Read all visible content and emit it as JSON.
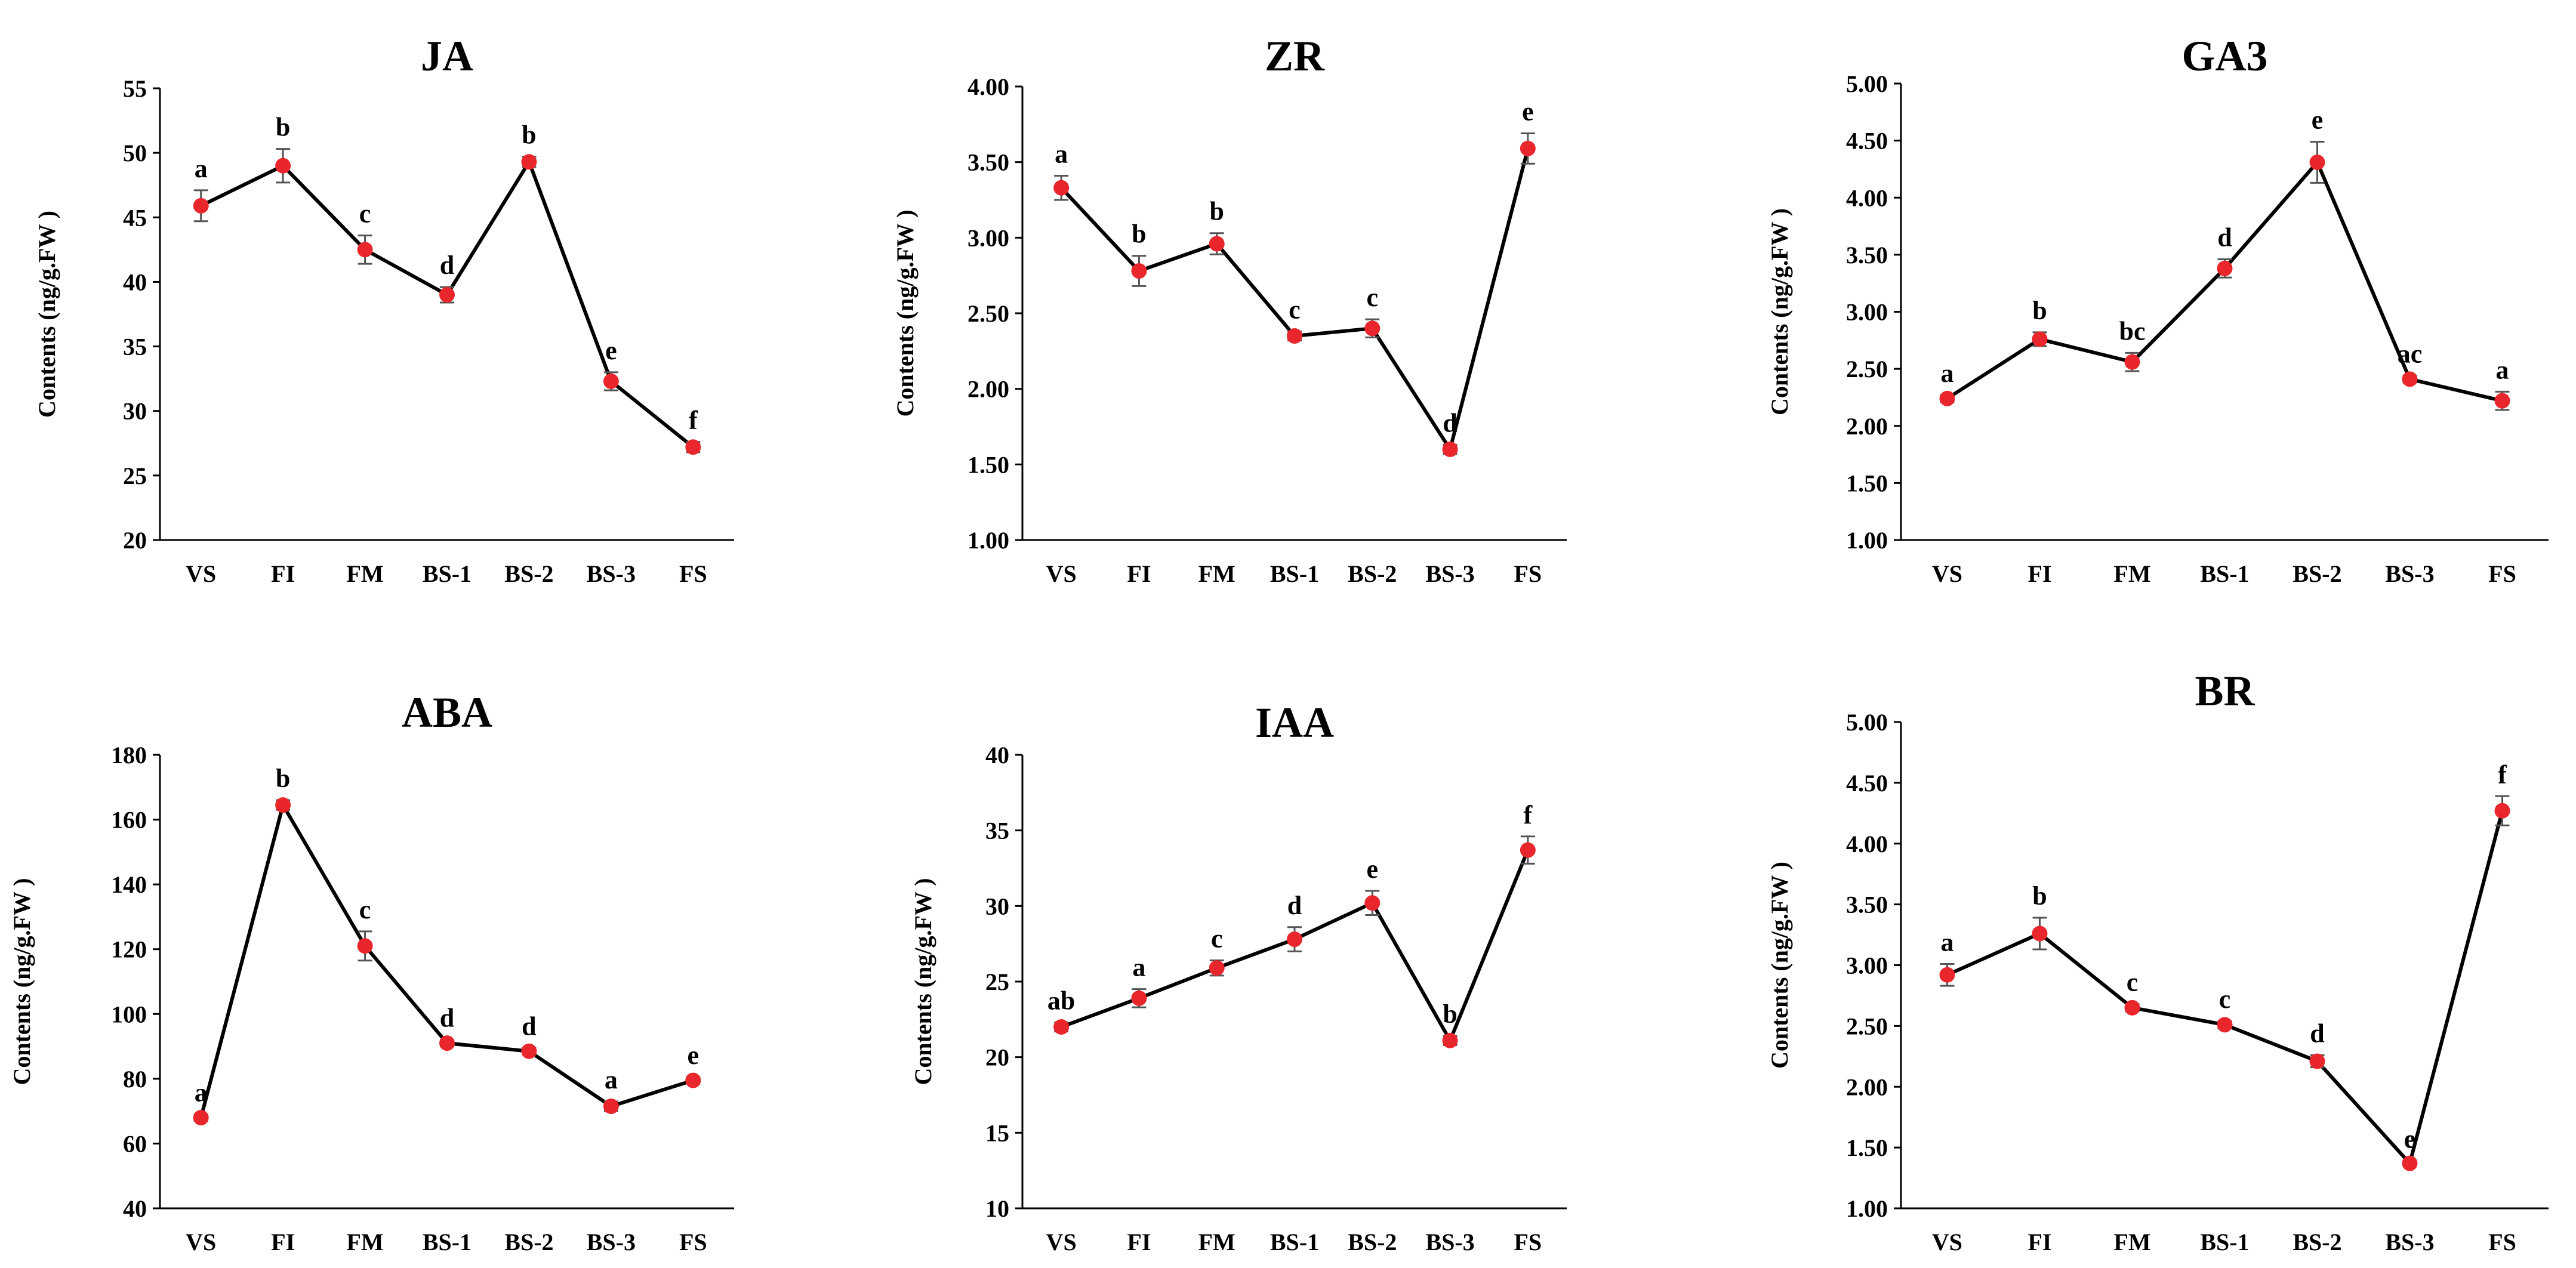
{
  "chart_data": [
    {
      "type": "line",
      "title": "JA",
      "ylabel": "Contents (ng/g.FW )",
      "xlabel": "",
      "categories": [
        "VS",
        "FI",
        "FM",
        "BS-1",
        "BS-2",
        "BS-3",
        "FS"
      ],
      "values": [
        45.9,
        49.0,
        42.5,
        39.0,
        49.3,
        32.3,
        27.2
      ],
      "errors": [
        1.2,
        1.3,
        1.1,
        0.6,
        0.4,
        0.7,
        0.4
      ],
      "labels": [
        "a",
        "b",
        "c",
        "d",
        "b",
        "e",
        "f"
      ],
      "ylim": [
        20,
        55
      ],
      "yticks": [
        20,
        25,
        30,
        35,
        40,
        45,
        50,
        55
      ],
      "ytick_labels": [
        "20",
        "25",
        "30",
        "35",
        "40",
        "45",
        "50",
        "55"
      ],
      "grid": false,
      "color": "#e8262b"
    },
    {
      "type": "line",
      "title": "ZR",
      "ylabel": "Contents (ng/g.FW )",
      "xlabel": "",
      "categories": [
        "VS",
        "FI",
        "FM",
        "BS-1",
        "BS-2",
        "BS-3",
        "FS"
      ],
      "values": [
        3.33,
        2.78,
        2.96,
        2.35,
        2.4,
        1.6,
        3.59
      ],
      "errors": [
        0.08,
        0.1,
        0.07,
        0.03,
        0.06,
        0.03,
        0.1
      ],
      "labels": [
        "a",
        "b",
        "b",
        "c",
        "c",
        "d",
        "e"
      ],
      "ylim": [
        1.0,
        4.0
      ],
      "yticks": [
        1.0,
        1.5,
        2.0,
        2.5,
        3.0,
        3.5,
        4.0
      ],
      "ytick_labels": [
        "1.00",
        "1.50",
        "2.00",
        "2.50",
        "3.00",
        "3.50",
        "4.00"
      ],
      "grid": false,
      "color": "#e8262b"
    },
    {
      "type": "line",
      "title": "GA3",
      "ylabel": "Contents (ng/g.FW )",
      "xlabel": "",
      "categories": [
        "VS",
        "FI",
        "FM",
        "BS-1",
        "BS-2",
        "BS-3",
        "FS"
      ],
      "values": [
        2.24,
        2.76,
        2.56,
        3.38,
        4.31,
        2.41,
        2.22
      ],
      "errors": [
        0.03,
        0.06,
        0.08,
        0.08,
        0.18,
        0.03,
        0.08
      ],
      "labels": [
        "a",
        "b",
        "bc",
        "d",
        "e",
        "ac",
        "a"
      ],
      "ylim": [
        1.0,
        5.0
      ],
      "yticks": [
        1.0,
        1.5,
        2.0,
        2.5,
        3.0,
        3.5,
        4.0,
        4.5,
        5.0
      ],
      "ytick_labels": [
        "1.00",
        "1.50",
        "2.00",
        "2.50",
        "3.00",
        "3.50",
        "4.00",
        "4.50",
        "5.00"
      ],
      "grid": false,
      "color": "#e8262b"
    },
    {
      "type": "line",
      "title": "ABA",
      "ylabel": "Contents (ng/g.FW )",
      "xlabel": "",
      "categories": [
        "VS",
        "FI",
        "FM",
        "BS-1",
        "BS-2",
        "BS-3",
        "FS"
      ],
      "values": [
        68,
        164.5,
        121,
        91,
        88.5,
        71.5,
        79.5
      ],
      "errors": [
        1.0,
        1.5,
        4.5,
        1.0,
        1.0,
        1.5,
        1.0
      ],
      "labels": [
        "a",
        "b",
        "c",
        "d",
        "d",
        "a",
        "e"
      ],
      "ylim": [
        40,
        180
      ],
      "yticks": [
        40,
        60,
        80,
        100,
        120,
        140,
        160,
        180
      ],
      "ytick_labels": [
        "40",
        "60",
        "80",
        "100",
        "120",
        "140",
        "160",
        "180"
      ],
      "grid": false,
      "color": "#e8262b"
    },
    {
      "type": "line",
      "title": "IAA",
      "ylabel": "Contents (ng/g.FW )",
      "xlabel": "",
      "categories": [
        "VS",
        "FI",
        "FM",
        "BS-1",
        "BS-2",
        "BS-3",
        "FS"
      ],
      "values": [
        22.0,
        23.9,
        25.9,
        27.8,
        30.2,
        21.1,
        33.7
      ],
      "errors": [
        0.3,
        0.6,
        0.5,
        0.8,
        0.8,
        0.3,
        0.9
      ],
      "labels": [
        "ab",
        "a",
        "c",
        "d",
        "e",
        "b",
        "f"
      ],
      "ylim": [
        10,
        40
      ],
      "yticks": [
        10,
        15,
        20,
        25,
        30,
        35,
        40
      ],
      "ytick_labels": [
        "10",
        "15",
        "20",
        "25",
        "30",
        "35",
        "40"
      ],
      "grid": false,
      "color": "#e8262b"
    },
    {
      "type": "line",
      "title": "BR",
      "ylabel": "Contents (ng/g.FW )",
      "xlabel": "",
      "categories": [
        "VS",
        "FI",
        "FM",
        "BS-1",
        "BS-2",
        "BS-3",
        "FS"
      ],
      "values": [
        2.92,
        3.26,
        2.65,
        2.51,
        2.21,
        1.37,
        4.27
      ],
      "errors": [
        0.09,
        0.13,
        0.03,
        0.03,
        0.05,
        0.02,
        0.12
      ],
      "labels": [
        "a",
        "b",
        "c",
        "c",
        "d",
        "e",
        "f"
      ],
      "ylim": [
        1.0,
        5.0
      ],
      "yticks": [
        1.0,
        1.5,
        2.0,
        2.5,
        3.0,
        3.5,
        4.0,
        4.5,
        5.0
      ],
      "ytick_labels": [
        "1.00",
        "1.50",
        "2.00",
        "2.50",
        "3.00",
        "3.50",
        "4.00",
        "4.50",
        "5.00"
      ],
      "grid": false,
      "color": "#e8262b"
    }
  ]
}
